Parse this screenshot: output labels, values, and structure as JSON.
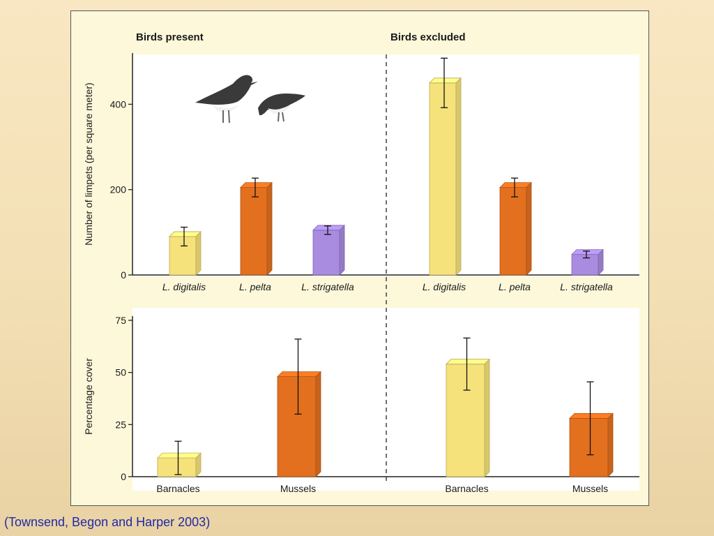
{
  "citation": "(Townsend, Begon and Harper 2003)",
  "colors": {
    "digitalis": "#f6e27a",
    "pelta": "#e2701f",
    "strigatella": "#a98be0",
    "barnacles": "#f6e27a",
    "mussels": "#e2701f",
    "background": "#fdf8da"
  },
  "chart_data": [
    {
      "type": "bar",
      "panel": "top",
      "ylabel": "Number of limpets (per square meter)",
      "yticks": [
        0,
        200,
        400
      ],
      "ylim": [
        0,
        520
      ],
      "categories": [
        "L. digitalis",
        "L. pelta",
        "L. strigatella"
      ],
      "series": [
        {
          "name": "Birds present",
          "values": [
            90,
            205,
            105
          ],
          "errors": [
            22,
            22,
            10
          ]
        },
        {
          "name": "Birds excluded",
          "values": [
            450,
            205,
            48
          ],
          "errors": [
            58,
            22,
            8
          ]
        }
      ]
    },
    {
      "type": "bar",
      "panel": "bottom",
      "ylabel": "Percentage cover",
      "yticks": [
        0,
        25,
        50,
        75
      ],
      "ylim": [
        0,
        77
      ],
      "categories": [
        "Barnacles",
        "Mussels"
      ],
      "series": [
        {
          "name": "Birds present",
          "values": [
            9,
            48
          ],
          "errors": [
            8,
            18
          ]
        },
        {
          "name": "Birds excluded",
          "values": [
            54,
            28
          ],
          "errors": [
            12.5,
            17.5
          ]
        }
      ]
    }
  ]
}
